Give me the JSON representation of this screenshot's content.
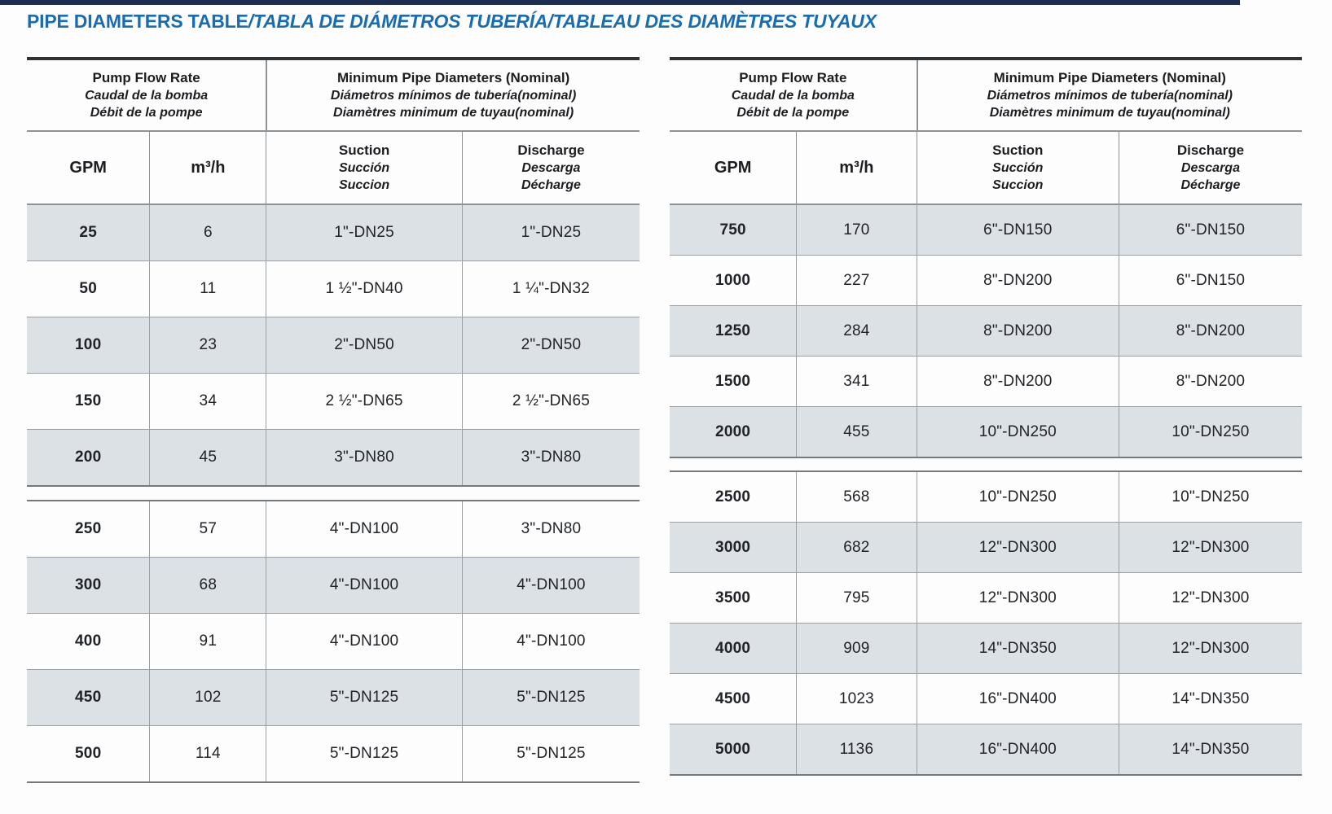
{
  "title": {
    "en": "PIPE DIAMETERS TABLE",
    "localized": "/TABLA DE DIÁMETROS TUBERÍA/TABLEAU DES DIAMÈTRES TUYAUX"
  },
  "colors": {
    "title_blue": "#1a6cb0",
    "top_bar_navy": "#1c2d51",
    "row_shade": "#dce1e5",
    "rule_light": "#9aa0a5",
    "rule_strong": "#74797e",
    "border_top": "#2f3235",
    "text": "#202327"
  },
  "table_header": {
    "pump_flow_rate": {
      "en": "Pump Flow Rate",
      "es": "Caudal de la bomba",
      "fr": "Débit de la pompe"
    },
    "min_pipe_diameters": {
      "en": "Minimum Pipe Diameters (Nominal)",
      "es": "Diámetros mínimos de tubería(nominal)",
      "fr": "Diamètres minimum de tuyau(nominal)"
    },
    "gpm": "GPM",
    "m3h": "m³/h",
    "suction": {
      "en": "Suction",
      "es": "Succión",
      "fr": "Succion"
    },
    "discharge": {
      "en": "Discharge",
      "es": "Descarga",
      "fr": "Décharge"
    }
  },
  "tables": [
    {
      "id": "left",
      "sections": [
        {
          "rows": [
            [
              "25",
              "6",
              "1\"-DN25",
              "1\"-DN25"
            ],
            [
              "50",
              "11",
              "1 ½\"-DN40",
              "1 ¼\"-DN32"
            ],
            [
              "100",
              "23",
              "2\"-DN50",
              "2\"-DN50"
            ],
            [
              "150",
              "34",
              "2 ½\"-DN65",
              "2 ½\"-DN65"
            ],
            [
              "200",
              "45",
              "3\"-DN80",
              "3\"-DN80"
            ]
          ]
        },
        {
          "rows": [
            [
              "250",
              "57",
              "4\"-DN100",
              "3\"-DN80"
            ],
            [
              "300",
              "68",
              "4\"-DN100",
              "4\"-DN100"
            ],
            [
              "400",
              "91",
              "4\"-DN100",
              "4\"-DN100"
            ],
            [
              "450",
              "102",
              "5\"-DN125",
              "5\"-DN125"
            ],
            [
              "500",
              "114",
              "5\"-DN125",
              "5\"-DN125"
            ]
          ]
        }
      ]
    },
    {
      "id": "right",
      "sections": [
        {
          "rows": [
            [
              "750",
              "170",
              "6\"-DN150",
              "6\"-DN150"
            ],
            [
              "1000",
              "227",
              "8\"-DN200",
              "6\"-DN150"
            ],
            [
              "1250",
              "284",
              "8\"-DN200",
              "8\"-DN200"
            ],
            [
              "1500",
              "341",
              "8\"-DN200",
              "8\"-DN200"
            ],
            [
              "2000",
              "455",
              "10\"-DN250",
              "10\"-DN250"
            ]
          ]
        },
        {
          "rows": [
            [
              "2500",
              "568",
              "10\"-DN250",
              "10\"-DN250"
            ],
            [
              "3000",
              "682",
              "12\"-DN300",
              "12\"-DN300"
            ],
            [
              "3500",
              "795",
              "12\"-DN300",
              "12\"-DN300"
            ],
            [
              "4000",
              "909",
              "14\"-DN350",
              "12\"-DN300"
            ],
            [
              "4500",
              "1023",
              "16\"-DN400",
              "14\"-DN350"
            ],
            [
              "5000",
              "1136",
              "16\"-DN400",
              "14\"-DN350"
            ]
          ]
        }
      ]
    }
  ]
}
